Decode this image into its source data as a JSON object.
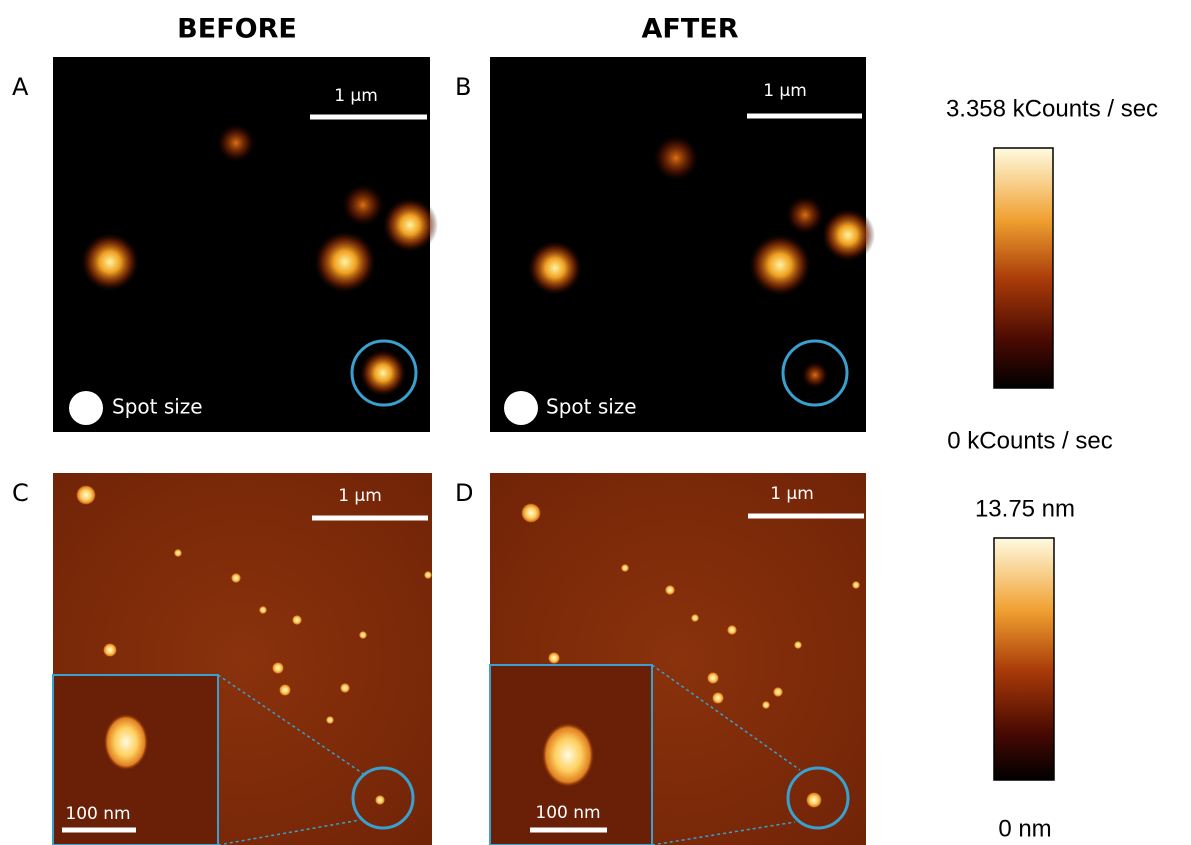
{
  "headers": [
    "BEFORE",
    "AFTER"
  ],
  "panels": [
    {
      "label": "A",
      "scale_bar": "1 µm",
      "spot_label": "Spot size"
    },
    {
      "label": "B",
      "scale_bar": "1 µm",
      "spot_label": "Spot size"
    },
    {
      "label": "C",
      "scale_bar": "1 µm",
      "inset_scale_bar": "100 nm"
    },
    {
      "label": "D",
      "scale_bar": "1 µm",
      "inset_scale_bar": "100 nm"
    }
  ],
  "colorbars": [
    {
      "max_label": "3.358 kCounts / sec",
      "min_label": "0 kCounts / sec"
    },
    {
      "max_label": "13.75 nm",
      "min_label": "0 nm"
    }
  ]
}
